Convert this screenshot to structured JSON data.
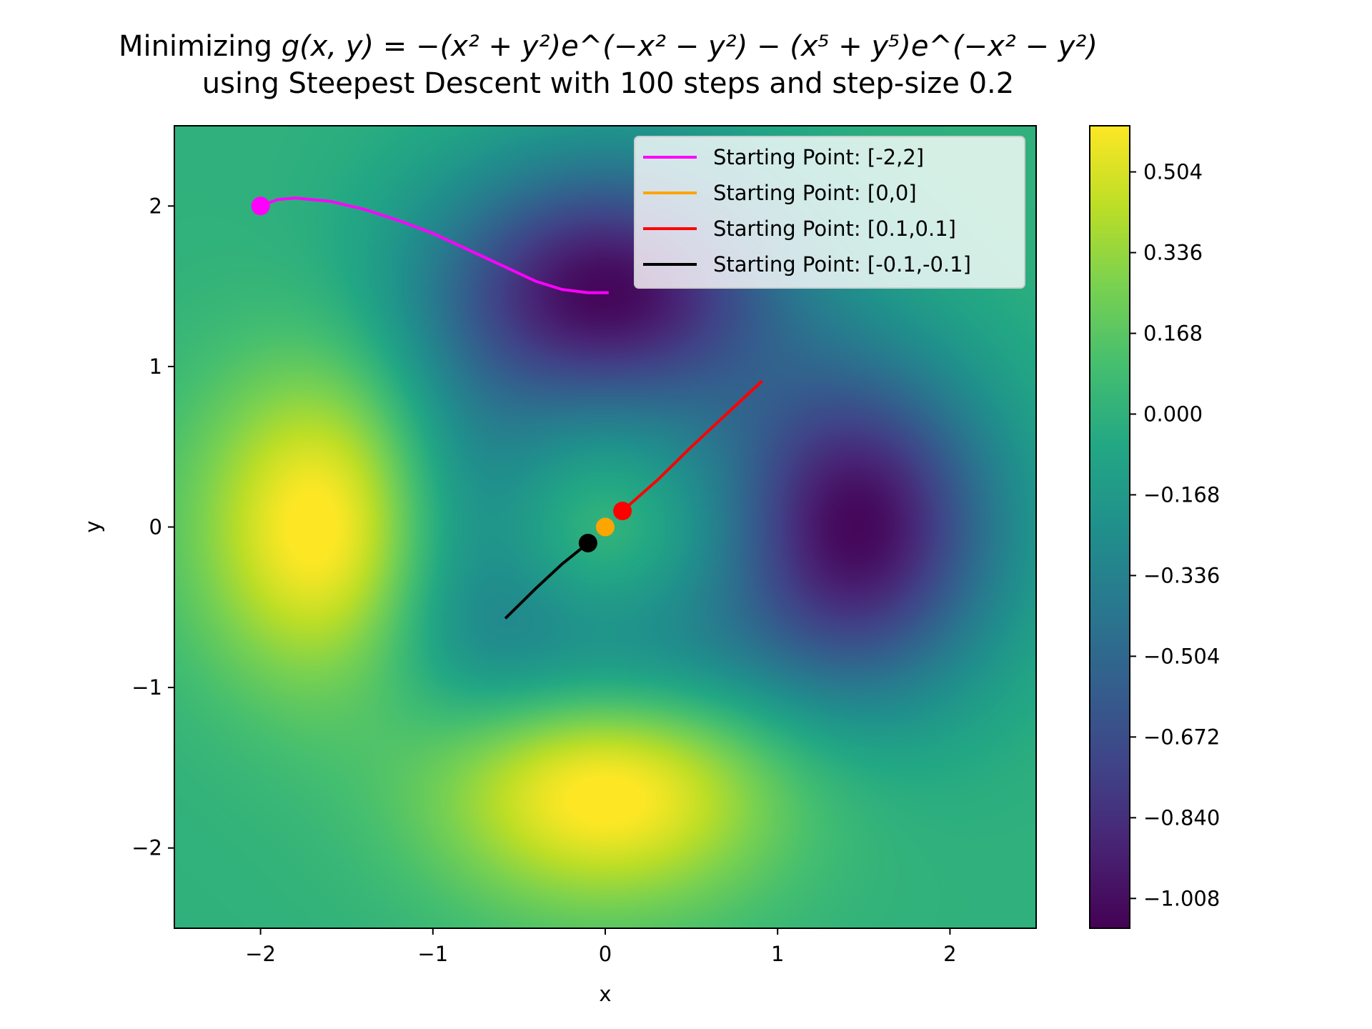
{
  "chart_data": {
    "type": "heatmap",
    "title": {
      "line1_prefix": "Minimizing ",
      "line1_formula": "g(x, y) = −(x² + y²)e^(−x² − y²) − (x⁵ + y⁵)e^(−x² − y²)",
      "line2": "using Steepest Descent with 100 steps and step-size 0.2"
    },
    "xlabel": "x",
    "ylabel": "y",
    "xlim": [
      -2.5,
      2.5
    ],
    "ylim": [
      -2.5,
      2.5
    ],
    "xticks": [
      -2,
      -1,
      0,
      1,
      2
    ],
    "yticks": [
      -2,
      -1,
      0,
      1,
      2
    ],
    "xtick_labels": [
      "−2",
      "−1",
      "0",
      "1",
      "2"
    ],
    "ytick_labels": [
      "−2",
      "−1",
      "0",
      "1",
      "2"
    ],
    "colormap": "viridis",
    "colorbar": {
      "range": [
        -1.07,
        0.6
      ],
      "ticks": [
        0.504,
        0.336,
        0.168,
        0.0,
        -0.168,
        -0.336,
        -0.504,
        -0.672,
        -0.84,
        -1.008
      ],
      "tick_labels": [
        "0.504",
        "0.336",
        "0.168",
        "0.000",
        "−0.168",
        "−0.336",
        "−0.504",
        "−0.672",
        "−0.840",
        "−1.008"
      ]
    },
    "legend_position": "top-right",
    "grid": false,
    "series": [
      {
        "name": "Starting Point: [-2,2]",
        "color": "#ff00ff",
        "start": [
          -2,
          2
        ],
        "path": [
          [
            -2,
            2
          ],
          [
            -1.9,
            2.04
          ],
          [
            -1.8,
            2.05
          ],
          [
            -1.6,
            2.03
          ],
          [
            -1.4,
            1.98
          ],
          [
            -1.2,
            1.91
          ],
          [
            -1.0,
            1.83
          ],
          [
            -0.8,
            1.73
          ],
          [
            -0.6,
            1.63
          ],
          [
            -0.4,
            1.53
          ],
          [
            -0.25,
            1.48
          ],
          [
            -0.1,
            1.46
          ],
          [
            0.02,
            1.46
          ]
        ]
      },
      {
        "name": "Starting Point: [0,0]",
        "color": "#ffa500",
        "start": [
          0,
          0
        ],
        "path": [
          [
            0,
            0
          ]
        ]
      },
      {
        "name": "Starting Point: [0.1,0.1]",
        "color": "#ff0000",
        "start": [
          0.1,
          0.1
        ],
        "path": [
          [
            0.1,
            0.1
          ],
          [
            0.3,
            0.29
          ],
          [
            0.5,
            0.5
          ],
          [
            0.7,
            0.7
          ],
          [
            0.91,
            0.91
          ]
        ]
      },
      {
        "name": "Starting Point: [-0.1,-0.1]",
        "color": "#000000",
        "start": [
          -0.1,
          -0.1
        ],
        "path": [
          [
            -0.1,
            -0.1
          ],
          [
            -0.25,
            -0.23
          ],
          [
            -0.4,
            -0.38
          ],
          [
            -0.58,
            -0.57
          ]
        ]
      }
    ]
  }
}
